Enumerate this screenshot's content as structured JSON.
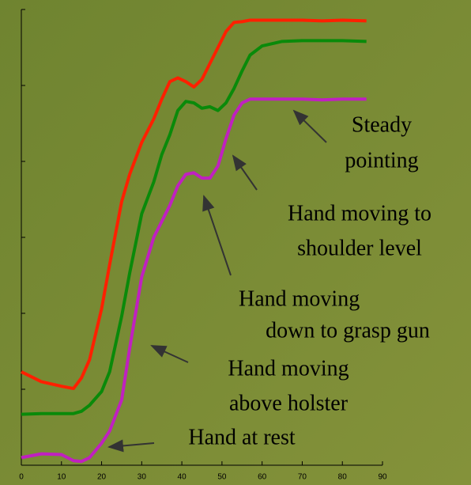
{
  "chart_data": {
    "type": "line",
    "x": [
      0,
      5,
      10,
      13,
      15,
      17,
      20,
      22,
      25,
      27,
      30,
      33,
      35,
      37,
      39,
      41,
      43,
      45,
      47,
      49,
      51,
      53,
      55,
      57,
      60,
      65,
      70,
      75,
      80,
      86
    ],
    "series": [
      {
        "color": "#ff2000",
        "values": [
          1.23,
          1.1,
          1.04,
          1.01,
          1.15,
          1.39,
          2.06,
          2.64,
          3.47,
          3.83,
          4.25,
          4.56,
          4.82,
          5.05,
          5.1,
          5.05,
          4.98,
          5.08,
          5.29,
          5.5,
          5.71,
          5.83,
          5.84,
          5.86,
          5.86,
          5.86,
          5.86,
          5.85,
          5.86,
          5.85
        ]
      },
      {
        "color": "#0a8a0a",
        "values": [
          0.67,
          0.68,
          0.68,
          0.68,
          0.71,
          0.79,
          0.97,
          1.23,
          1.96,
          2.53,
          3.31,
          3.73,
          4.09,
          4.35,
          4.67,
          4.79,
          4.77,
          4.7,
          4.72,
          4.67,
          4.77,
          4.96,
          5.19,
          5.4,
          5.52,
          5.58,
          5.59,
          5.59,
          5.59,
          5.58
        ]
      },
      {
        "color": "#c020c0",
        "values": [
          0.1,
          0.15,
          0.14,
          0.06,
          0.05,
          0.1,
          0.29,
          0.45,
          0.86,
          1.54,
          2.48,
          3.0,
          3.21,
          3.42,
          3.68,
          3.83,
          3.85,
          3.78,
          3.78,
          3.94,
          4.3,
          4.61,
          4.77,
          4.82,
          4.82,
          4.82,
          4.82,
          4.81,
          4.82,
          4.82
        ]
      }
    ],
    "xlim": [
      0,
      90
    ],
    "xticks": [
      0,
      10,
      20,
      30,
      40,
      50,
      60,
      70,
      80,
      90
    ],
    "ylim": [
      0,
      6
    ],
    "yticks": [
      0,
      1,
      2,
      3,
      4,
      5,
      6
    ],
    "annotations": [
      {
        "lines": [
          "Steady",
          "pointing"
        ]
      },
      {
        "lines": [
          "Hand moving to",
          "shoulder level"
        ]
      },
      {
        "lines": [
          "Hand moving",
          "down to grasp gun"
        ]
      },
      {
        "lines": [
          "Hand moving",
          "above holster"
        ]
      },
      {
        "lines": [
          "Hand at rest"
        ]
      }
    ]
  }
}
